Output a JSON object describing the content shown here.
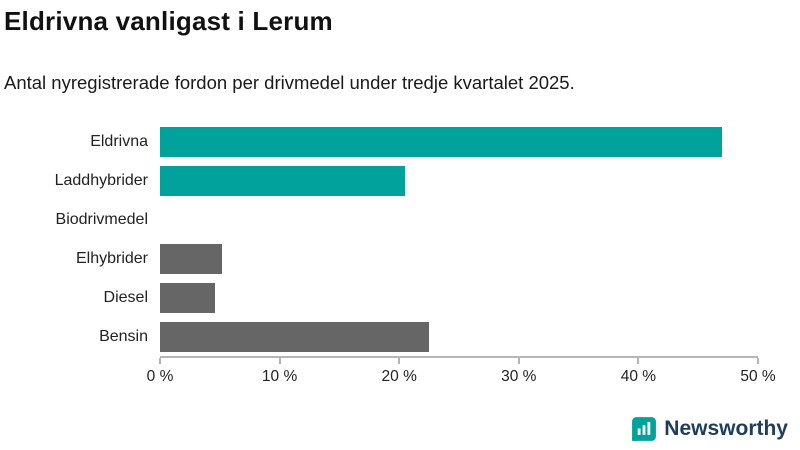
{
  "header": {
    "title": "Eldrivna vanligast i Lerum",
    "subtitle": "Antal nyregistrerade fordon per drivmedel under tredje kvartalet 2025."
  },
  "chart_data": {
    "type": "bar",
    "orientation": "horizontal",
    "title": "Eldrivna vanligast i Lerum",
    "subtitle": "Antal nyregistrerade fordon per drivmedel under tredje kvartalet 2025.",
    "categories": [
      "Eldrivna",
      "Laddhybrider",
      "Biodrivmedel",
      "Elhybrider",
      "Diesel",
      "Bensin"
    ],
    "values": [
      47,
      20.5,
      0,
      5.2,
      4.6,
      22.5
    ],
    "bar_colors": [
      "#00a29b",
      "#00a29b",
      "#00a29b",
      "#666666",
      "#666666",
      "#666666"
    ],
    "xlabel": "",
    "ylabel": "",
    "xlim": [
      0,
      50
    ],
    "x_ticks": [
      0,
      10,
      20,
      30,
      40,
      50
    ],
    "x_tick_labels": [
      "0 %",
      "10 %",
      "20 %",
      "30 %",
      "40 %",
      "50 %"
    ],
    "grid": false,
    "legend": false
  },
  "footer": {
    "brand": "Newsworthy",
    "brand_color": "#1e3c5c",
    "icon_color": "#00a29b",
    "icon_name": "newsworthy-logo-icon"
  }
}
